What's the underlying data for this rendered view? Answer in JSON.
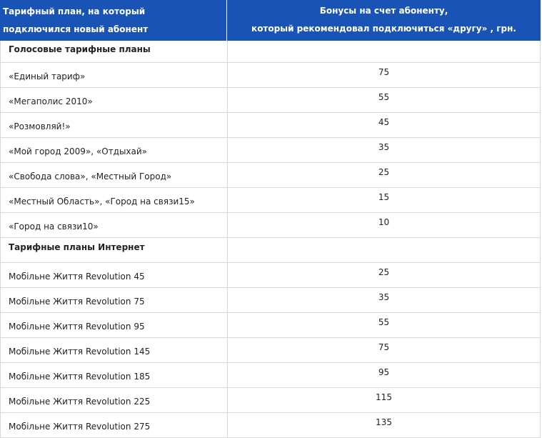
{
  "header": {
    "col1_line1": "Тарифный план, на который",
    "col1_line2": "подключился новый абонент",
    "col2_line1": "Бонусы на счет абоненту,",
    "col2_line2": "который рекомендовал подключиться «другу» , грн."
  },
  "rows": [
    {
      "name": "Голосовые тарифные планы",
      "value": "",
      "section": true
    },
    {
      "name": "«Единый тариф»",
      "value": "75"
    },
    {
      "name": "«Мегаполис 2010»",
      "value": "55"
    },
    {
      "name": "«Розмовляй!»",
      "value": "45"
    },
    {
      "name": " «Мой город 2009», «Отдыхай»",
      "value": "35"
    },
    {
      "name": "«Свобода слова», «Местный Город»",
      "value": "25"
    },
    {
      "name": "«Местный Область», «Город на связи15»",
      "value": "15"
    },
    {
      "name": "«Город на связи10»",
      "value": "10"
    },
    {
      "name": "Тарифные планы Интернет",
      "value": "",
      "section": true
    },
    {
      "name": "Мобільне Життя Revolution 45",
      "value": "25"
    },
    {
      "name": "Мобільне Життя Revolution 75",
      "value": "35"
    },
    {
      "name": "Мобільне Життя Revolution 95",
      "value": "55"
    },
    {
      "name": "Мобільне Життя Revolution 145",
      "value": "75"
    },
    {
      "name": "Мобільне Життя Revolution 185",
      "value": "95"
    },
    {
      "name": "Мобільне Життя Revolution 225",
      "value": "115"
    },
    {
      "name": "Мобільне Життя Revolution 275",
      "value": "135"
    }
  ],
  "colors": {
    "header_bg": "#1a53b6",
    "border": "#d8d8d8"
  }
}
